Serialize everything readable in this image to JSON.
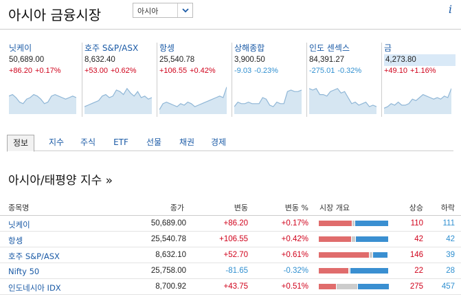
{
  "header": {
    "title": "아시아 금융시장",
    "region_select": "아시아",
    "info": "i"
  },
  "tiles": [
    {
      "name": "닛케이",
      "price": "50,689.00",
      "change": "+86.20",
      "pct": "+0.17%",
      "dir": "pos",
      "highlight": false,
      "spark": [
        0.55,
        0.6,
        0.5,
        0.35,
        0.3,
        0.45,
        0.5,
        0.6,
        0.55,
        0.45,
        0.3,
        0.35,
        0.55,
        0.6,
        0.55,
        0.5,
        0.45,
        0.5,
        0.55,
        0.5
      ]
    },
    {
      "name": "호주 S&P/ASX",
      "price": "8,632.40",
      "change": "+53.00",
      "pct": "+0.62%",
      "dir": "pos",
      "highlight": false,
      "spark": [
        0.2,
        0.25,
        0.3,
        0.35,
        0.4,
        0.55,
        0.6,
        0.5,
        0.55,
        0.75,
        0.7,
        0.6,
        0.8,
        0.65,
        0.55,
        0.7,
        0.5,
        0.55,
        0.45,
        0.5
      ]
    },
    {
      "name": "항셍",
      "price": "25,540.78",
      "change": "+106.55",
      "pct": "+0.42%",
      "dir": "pos",
      "highlight": false,
      "spark": [
        0.1,
        0.3,
        0.35,
        0.3,
        0.25,
        0.2,
        0.3,
        0.25,
        0.35,
        0.3,
        0.2,
        0.25,
        0.3,
        0.35,
        0.4,
        0.45,
        0.5,
        0.55,
        0.5,
        0.85
      ]
    },
    {
      "name": "상해종합",
      "price": "3,900.50",
      "change": "-9.03",
      "pct": "-0.23%",
      "dir": "neg",
      "highlight": false,
      "spark": [
        0.2,
        0.35,
        0.3,
        0.3,
        0.35,
        0.3,
        0.3,
        0.3,
        0.5,
        0.45,
        0.25,
        0.2,
        0.35,
        0.3,
        0.3,
        0.7,
        0.75,
        0.7,
        0.7,
        0.75
      ]
    },
    {
      "name": "인도 센섹스",
      "price": "84,391.27",
      "change": "-275.01",
      "pct": "-0.32%",
      "dir": "neg",
      "highlight": false,
      "spark": [
        0.8,
        0.75,
        0.8,
        0.6,
        0.6,
        0.55,
        0.7,
        0.75,
        0.8,
        0.65,
        0.7,
        0.5,
        0.3,
        0.35,
        0.25,
        0.3,
        0.35,
        0.2,
        0.25,
        0.2
      ]
    },
    {
      "name": "금",
      "price": "4,273.80",
      "change": "+49.10",
      "pct": "+1.16%",
      "dir": "pos",
      "highlight": true,
      "spark": [
        0.15,
        0.2,
        0.3,
        0.25,
        0.35,
        0.25,
        0.25,
        0.3,
        0.45,
        0.4,
        0.5,
        0.6,
        0.55,
        0.5,
        0.45,
        0.5,
        0.45,
        0.55,
        0.5,
        0.8
      ]
    }
  ],
  "tabs": [
    "정보",
    "지수",
    "주식",
    "ETF",
    "선물",
    "채권",
    "경제"
  ],
  "section_title": "아시아/태평양 지수 »",
  "table": {
    "headers": {
      "name": "종목명",
      "price": "종가",
      "change": "변동",
      "pct": "변동 %",
      "overview": "시장 개요",
      "up": "상승",
      "down": "하락"
    },
    "rows": [
      {
        "name": "닛케이",
        "price": "50,689.00",
        "change": "+86.20",
        "pct": "+0.17%",
        "dir": "pos",
        "up": "110",
        "down": "111",
        "bar": [
          0.48,
          0.04,
          0.48
        ]
      },
      {
        "name": "항셍",
        "price": "25,540.78",
        "change": "+106.55",
        "pct": "+0.42%",
        "dir": "pos",
        "up": "42",
        "down": "42",
        "bar": [
          0.47,
          0.06,
          0.47
        ]
      },
      {
        "name": "호주 S&P/ASX",
        "price": "8,632.10",
        "change": "+52.70",
        "pct": "+0.61%",
        "dir": "pos",
        "up": "146",
        "down": "39",
        "bar": [
          0.73,
          0.05,
          0.22
        ]
      },
      {
        "name": "Nifty 50",
        "price": "25,758.00",
        "change": "-81.65",
        "pct": "-0.32%",
        "dir": "neg",
        "up": "22",
        "down": "28",
        "bar": [
          0.43,
          0.02,
          0.55
        ]
      },
      {
        "name": "인도네시아 IDX",
        "price": "8,700.92",
        "change": "+43.75",
        "pct": "+0.51%",
        "dir": "pos",
        "up": "275",
        "down": "457",
        "bar": [
          0.25,
          0.3,
          0.45
        ]
      }
    ]
  },
  "colors": {
    "up": "#e06c6c",
    "unchanged": "#cccccc",
    "down": "#3a8fd1",
    "link": "#1a5aa6",
    "pos_text": "#d0021b",
    "neg_text": "#2f8fd0",
    "spark_fill": "#d6e6f2",
    "spark_line": "#8fb6d6"
  }
}
